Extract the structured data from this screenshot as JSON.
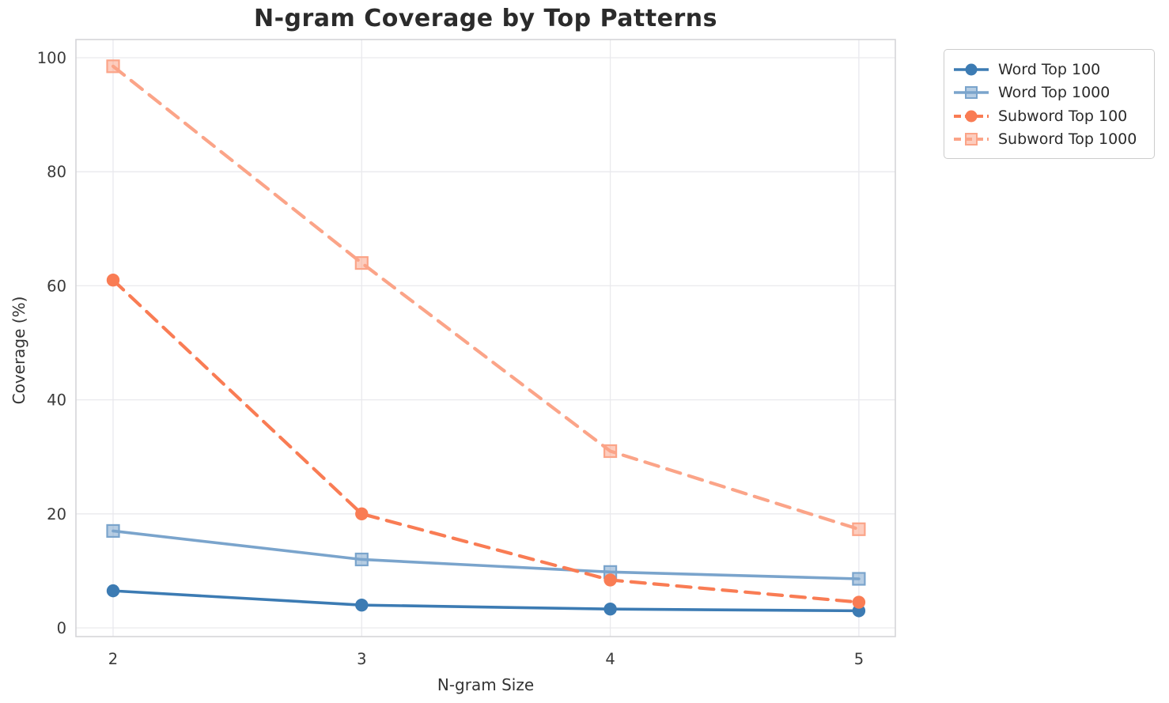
{
  "title": "N-gram Coverage by Top Patterns",
  "chart_data": {
    "type": "line",
    "title": "N-gram Coverage by Top Patterns",
    "x": [
      2,
      3,
      4,
      5
    ],
    "xlabel": "N-gram Size",
    "ylabel": "Coverage (%)",
    "xticks": [
      "2",
      "3",
      "4",
      "5"
    ],
    "yticks": [
      0,
      20,
      40,
      60,
      80,
      100
    ],
    "xlim": [
      1.85,
      5.15
    ],
    "ylim": [
      -1.5,
      103
    ],
    "grid": true,
    "legend_position": "outside-upper-right",
    "series": [
      {
        "name": "Word Top 100",
        "values": [
          6.5,
          4.0,
          3.3,
          3.0
        ],
        "color": "#3c7bb3",
        "line_style": "solid",
        "marker": "circle"
      },
      {
        "name": "Word Top 1000",
        "values": [
          17.0,
          12.0,
          9.8,
          8.6
        ],
        "color": "#7aa4cc",
        "line_style": "solid",
        "marker": "square"
      },
      {
        "name": "Subword Top 100",
        "values": [
          61.0,
          20.0,
          8.4,
          4.5
        ],
        "color": "#f97c54",
        "line_style": "dashed",
        "marker": "circle"
      },
      {
        "name": "Subword Top 1000",
        "values": [
          98.5,
          64.0,
          31.0,
          17.3
        ],
        "color": "#fba488",
        "line_style": "dashed",
        "marker": "square"
      }
    ]
  }
}
